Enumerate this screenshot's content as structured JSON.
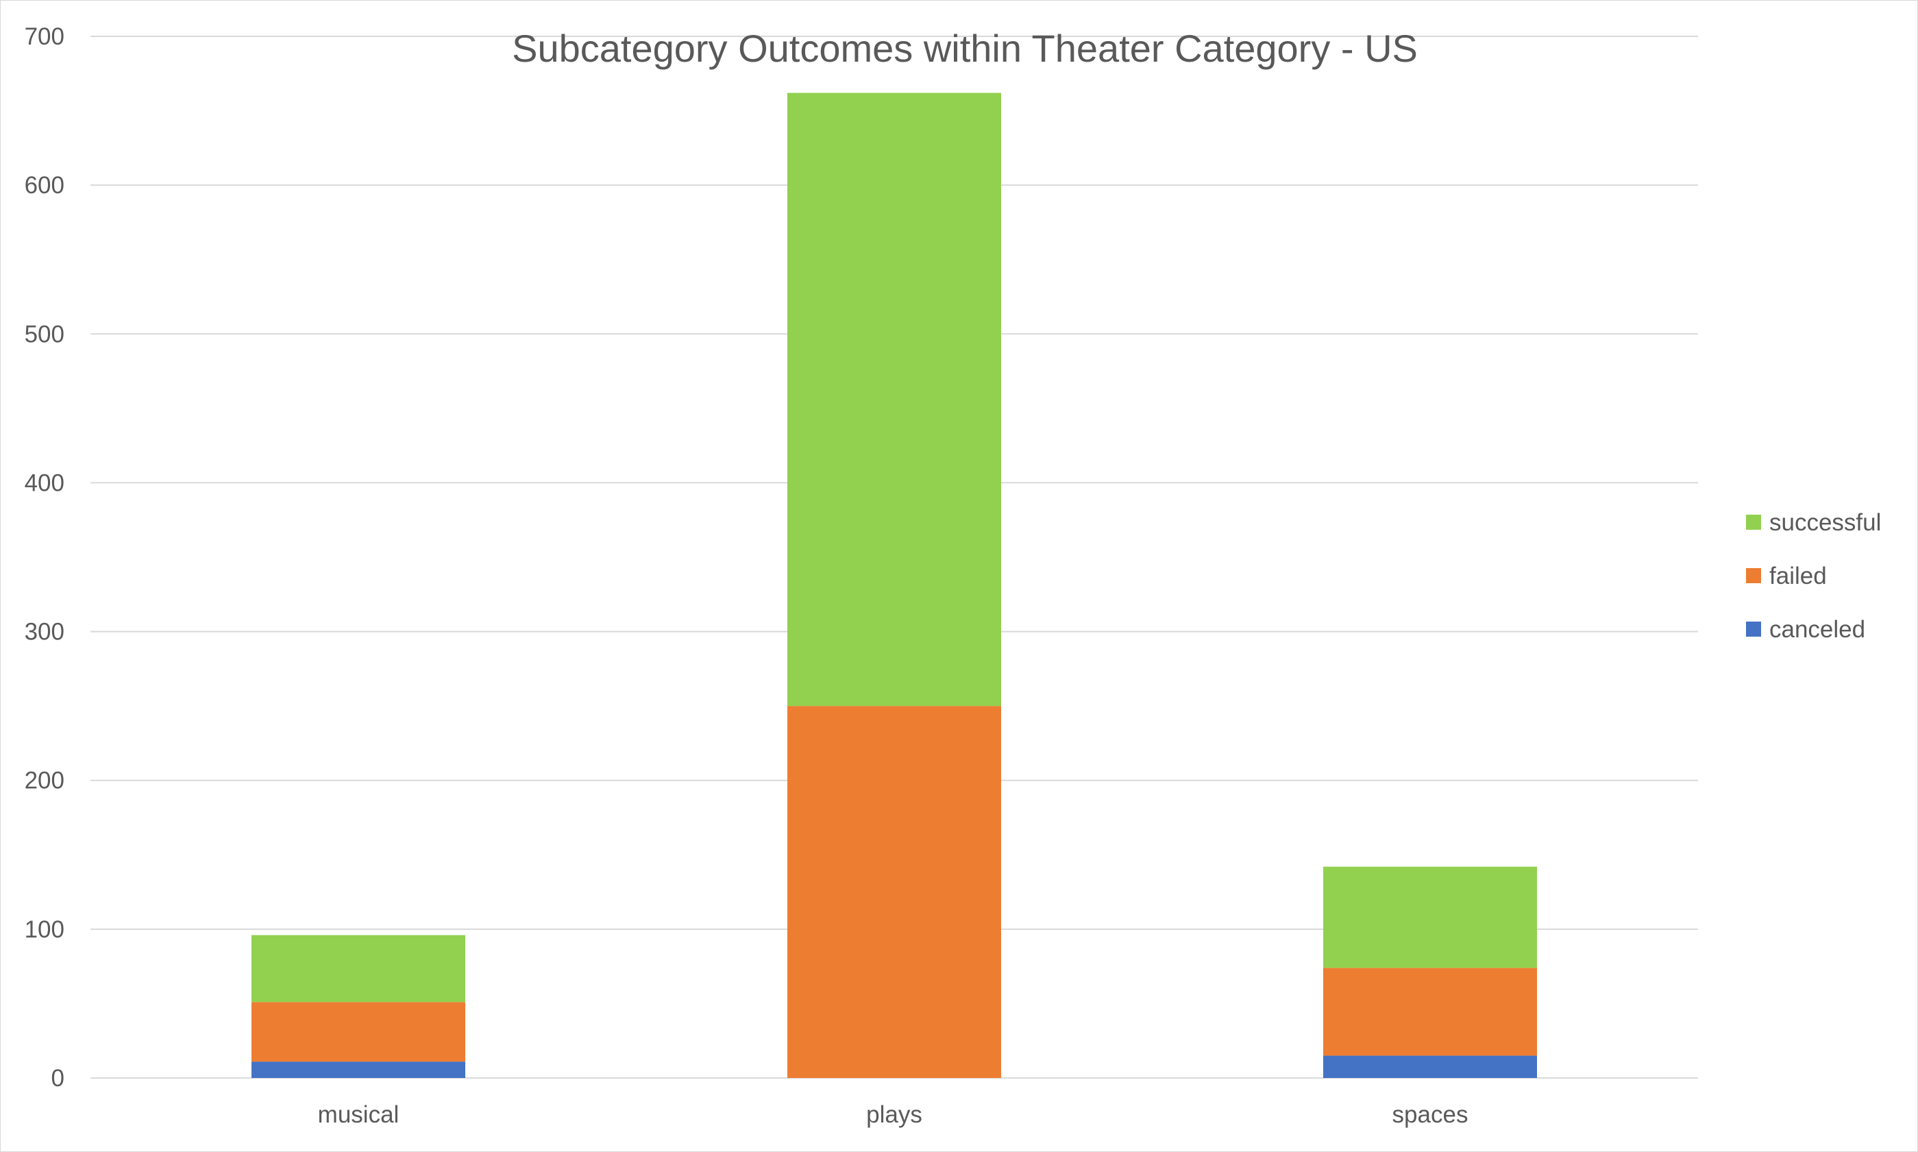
{
  "chart_data": {
    "type": "bar",
    "stacked": true,
    "title": "Subcategory Outcomes within Theater Category - US",
    "xlabel": "",
    "ylabel": "",
    "categories": [
      "musical",
      "plays",
      "spaces"
    ],
    "series": [
      {
        "name": "canceled",
        "color": "#4472c4",
        "values": [
          11,
          0,
          15
        ]
      },
      {
        "name": "failed",
        "color": "#ed7d31",
        "values": [
          40,
          250,
          59
        ]
      },
      {
        "name": "successful",
        "color": "#92d050",
        "values": [
          45,
          412,
          68
        ]
      }
    ],
    "ylim": [
      0,
      700
    ],
    "yticks": [
      0,
      100,
      200,
      300,
      400,
      500,
      600,
      700
    ],
    "grid": true,
    "legend_position": "right",
    "legend_order": [
      "successful",
      "failed",
      "canceled"
    ]
  }
}
